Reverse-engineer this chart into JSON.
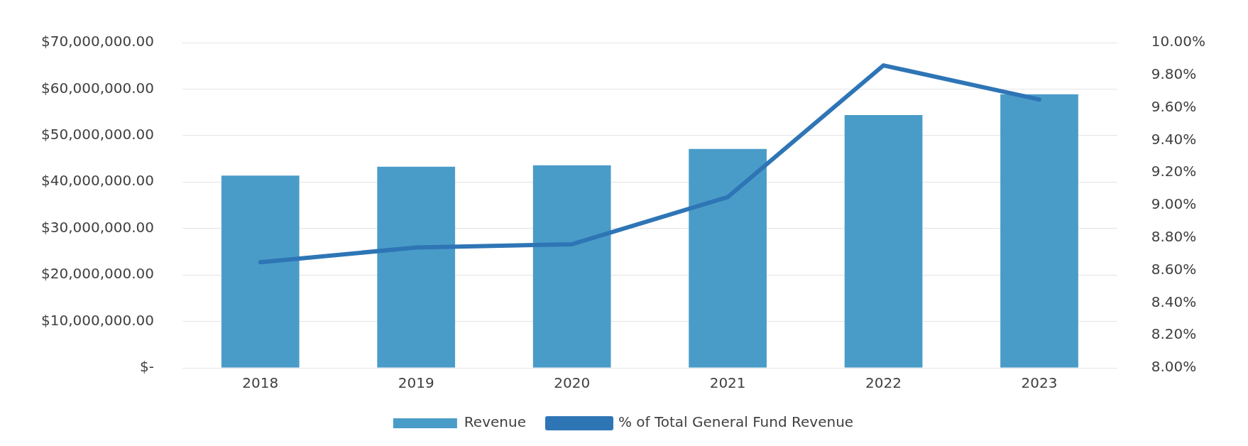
{
  "chart_data": {
    "type": "bar",
    "categories": [
      "2018",
      "2019",
      "2020",
      "2021",
      "2022",
      "2023"
    ],
    "series": [
      {
        "name": "Revenue",
        "color": "#4a9cc8",
        "values": [
          41400000,
          43300000,
          43600000,
          47100000,
          54400000,
          58900000
        ]
      },
      {
        "name": "% of Total General Fund Revenue",
        "type": "line",
        "axis": "y2",
        "color": "#2e75b6",
        "values": [
          8.65,
          8.74,
          8.76,
          9.05,
          9.86,
          9.65
        ]
      }
    ],
    "ylim": [
      0,
      70000000
    ],
    "yticks": [
      {
        "value": 0,
        "label": "$-"
      },
      {
        "value": 10000000,
        "label": "$10,000,000.00"
      },
      {
        "value": 20000000,
        "label": "$20,000,000.00"
      },
      {
        "value": 30000000,
        "label": "$30,000,000.00"
      },
      {
        "value": 40000000,
        "label": "$40,000,000.00"
      },
      {
        "value": 50000000,
        "label": "$50,000,000.00"
      },
      {
        "value": 60000000,
        "label": "$60,000,000.00"
      },
      {
        "value": 70000000,
        "label": "$70,000,000.00"
      }
    ],
    "y2lim": [
      8,
      10
    ],
    "y2ticks": [
      {
        "value": 8,
        "label": "8.00%"
      },
      {
        "value": 8.2,
        "label": "8.20%"
      },
      {
        "value": 8.4,
        "label": "8.40%"
      },
      {
        "value": 8.6,
        "label": "8.60%"
      },
      {
        "value": 8.8,
        "label": "8.80%"
      },
      {
        "value": 9,
        "label": "9.00%"
      },
      {
        "value": 9.2,
        "label": "9.20%"
      },
      {
        "value": 9.4,
        "label": "9.40%"
      },
      {
        "value": 9.6,
        "label": "9.60%"
      },
      {
        "value": 9.8,
        "label": "9.80%"
      },
      {
        "value": 10,
        "label": "10.00%"
      }
    ],
    "grid": "y",
    "legend": "bottom",
    "marker": "none",
    "line_style": "solid"
  }
}
